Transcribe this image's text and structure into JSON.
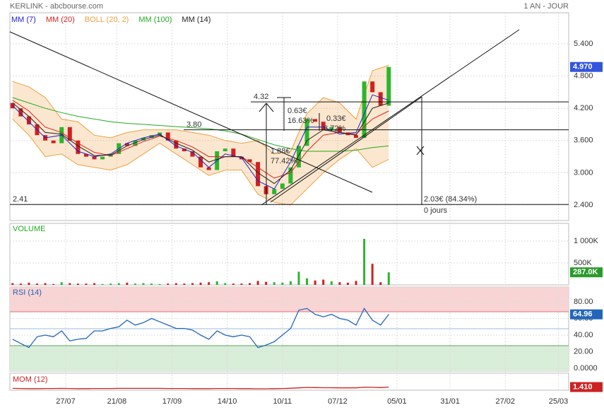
{
  "header": {
    "title": "KERLINK - abcbourse.com",
    "period": "1 AN - JOUR"
  },
  "chart_data": [
    {
      "type": "candlestick",
      "x": [
        0,
        4,
        8,
        12,
        16,
        20,
        24,
        28,
        32,
        36,
        40,
        44,
        48,
        52,
        56,
        60,
        64,
        68,
        72,
        76,
        80,
        84,
        88,
        92,
        96,
        100,
        104,
        108,
        112,
        116,
        120,
        124,
        128,
        132,
        136,
        140,
        144,
        148,
        152,
        156,
        160,
        164,
        168,
        172,
        176,
        180,
        184
      ],
      "open": [
        4.3,
        4.2,
        4.05,
        3.9,
        3.7,
        3.6,
        3.55,
        3.85,
        3.6,
        3.35,
        3.3,
        3.25,
        3.3,
        3.35,
        3.55,
        3.5,
        3.6,
        3.65,
        3.7,
        3.75,
        3.6,
        3.45,
        3.4,
        3.3,
        3.1,
        3.05,
        3.4,
        3.45,
        3.3,
        3.25,
        3.2,
        2.75,
        2.6,
        2.7,
        2.8,
        3.1,
        3.5,
        4.0,
        3.95,
        3.8,
        3.85,
        3.75,
        3.7,
        3.65,
        4.7,
        4.5,
        4.25
      ],
      "close": [
        4.2,
        4.05,
        3.9,
        3.7,
        3.6,
        3.55,
        3.85,
        3.6,
        3.35,
        3.3,
        3.25,
        3.3,
        3.35,
        3.55,
        3.5,
        3.6,
        3.65,
        3.7,
        3.75,
        3.6,
        3.45,
        3.4,
        3.3,
        3.1,
        3.05,
        3.4,
        3.45,
        3.3,
        3.25,
        3.2,
        2.75,
        2.6,
        2.7,
        2.8,
        3.1,
        3.5,
        4.0,
        3.95,
        3.8,
        3.85,
        3.75,
        3.7,
        3.65,
        4.7,
        4.5,
        4.25,
        4.97
      ],
      "xlim": [
        -1.3,
        272
      ],
      "xticks": [
        {
          "value": 26,
          "label": "27/07"
        },
        {
          "value": 51,
          "label": "21/08"
        },
        {
          "value": 78,
          "label": "17/09"
        },
        {
          "value": 105,
          "label": "14/10"
        },
        {
          "value": 132,
          "label": "10/11"
        },
        {
          "value": 159,
          "label": "07/12"
        },
        {
          "value": 188,
          "label": "05/01"
        },
        {
          "value": 214,
          "label": "31/01"
        },
        {
          "value": 241,
          "label": "27/02"
        },
        {
          "value": 267,
          "label": "25/03"
        }
      ],
      "ylim": [
        2.11,
        5.98
      ],
      "yticks": [
        {
          "value": 2.4,
          "label": "2.400"
        },
        {
          "value": 3.0,
          "label": "3.000"
        },
        {
          "value": 3.6,
          "label": "3.600"
        },
        {
          "value": 4.2,
          "label": "4.200"
        },
        {
          "value": 4.8,
          "label": "4.800"
        },
        {
          "value": 5.4,
          "label": "5.400"
        }
      ],
      "last_value": 4.97,
      "last_label": "4.970",
      "series": [
        {
          "name": "MM (7)",
          "color": "#2222cc",
          "x": [
            0,
            8,
            16,
            24,
            32,
            40,
            48,
            56,
            64,
            72,
            80,
            88,
            96,
            104,
            112,
            120,
            128,
            136,
            144,
            152,
            160,
            168,
            176,
            184
          ],
          "values": [
            4.25,
            3.95,
            3.65,
            3.7,
            3.4,
            3.3,
            3.35,
            3.55,
            3.65,
            3.72,
            3.5,
            3.38,
            3.1,
            3.35,
            3.28,
            2.85,
            2.7,
            3.2,
            3.85,
            3.85,
            3.72,
            3.75,
            4.45,
            4.35
          ]
        },
        {
          "name": "MM (20)",
          "color": "#dd2222",
          "x": [
            0,
            8,
            16,
            24,
            32,
            40,
            48,
            56,
            64,
            72,
            80,
            88,
            96,
            104,
            112,
            120,
            128,
            136,
            144,
            152,
            160,
            168,
            176,
            184
          ],
          "values": [
            4.35,
            4.15,
            3.85,
            3.75,
            3.55,
            3.38,
            3.32,
            3.45,
            3.58,
            3.68,
            3.6,
            3.48,
            3.3,
            3.3,
            3.3,
            3.1,
            2.9,
            3.0,
            3.4,
            3.7,
            3.75,
            3.72,
            4.0,
            4.15
          ]
        },
        {
          "name": "BOLL (20, 2)",
          "color": "#f0a040",
          "x": [
            0,
            8,
            16,
            24,
            32,
            40,
            48,
            56,
            64,
            72,
            80,
            88,
            96,
            104,
            112,
            120,
            128,
            136,
            144,
            152,
            160,
            168,
            176,
            184
          ],
          "upper": [
            4.7,
            4.6,
            4.4,
            4.0,
            3.95,
            3.7,
            3.65,
            3.75,
            3.8,
            3.8,
            3.8,
            3.75,
            3.7,
            3.6,
            3.55,
            3.6,
            3.35,
            3.4,
            4.1,
            4.4,
            4.3,
            4.0,
            4.9,
            5.0
          ],
          "lower": [
            4.0,
            3.7,
            3.3,
            3.35,
            3.15,
            3.1,
            3.05,
            3.15,
            3.35,
            3.55,
            3.35,
            3.15,
            2.95,
            3.05,
            3.05,
            2.6,
            2.45,
            2.4,
            2.7,
            3.0,
            3.25,
            3.45,
            3.1,
            3.25
          ]
        },
        {
          "name": "MM (100)",
          "color": "#22aa22",
          "x": [
            0,
            8,
            16,
            24,
            32,
            40,
            48,
            56,
            64,
            72,
            80,
            88,
            96,
            104,
            112,
            120,
            128,
            136,
            144,
            152,
            160,
            168,
            176,
            184
          ],
          "values": [
            4.4,
            4.3,
            4.2,
            4.12,
            4.05,
            4.0,
            3.95,
            3.92,
            3.9,
            3.88,
            3.86,
            3.84,
            3.82,
            3.78,
            3.72,
            3.62,
            3.52,
            3.45,
            3.4,
            3.4,
            3.4,
            3.42,
            3.47,
            3.5
          ]
        },
        {
          "name": "MM (14)",
          "color": "#222222",
          "x": [
            0,
            8,
            16,
            24,
            32,
            40,
            48,
            56,
            64,
            72,
            80,
            88,
            96,
            104,
            112,
            120,
            128,
            136,
            144,
            152,
            160,
            168,
            176,
            184
          ],
          "values": [
            4.3,
            4.05,
            3.75,
            3.72,
            3.5,
            3.32,
            3.33,
            3.5,
            3.62,
            3.7,
            3.55,
            3.42,
            3.2,
            3.3,
            3.3,
            3.0,
            2.8,
            3.05,
            3.6,
            3.8,
            3.75,
            3.7,
            4.2,
            4.3
          ]
        }
      ],
      "levels": [
        {
          "value": 4.32,
          "label": "4.32"
        },
        {
          "value": 3.8,
          "label": "3.80"
        },
        {
          "value": 2.41,
          "label": "2.41"
        }
      ],
      "annotations": [
        "0.63€",
        "16.63%",
        "1.88€",
        "77.42%",
        "2.03€ (84.34%)",
        "0 jours",
        "0.33€",
        "8.72%"
      ]
    },
    {
      "type": "bar",
      "title": "VOLUME",
      "x": [
        0,
        4,
        8,
        12,
        16,
        20,
        24,
        28,
        32,
        36,
        40,
        44,
        48,
        52,
        56,
        60,
        64,
        68,
        72,
        76,
        80,
        84,
        88,
        92,
        96,
        100,
        104,
        108,
        112,
        116,
        120,
        124,
        128,
        132,
        136,
        140,
        144,
        148,
        152,
        156,
        160,
        164,
        168,
        172,
        176,
        180,
        184
      ],
      "values": [
        40000,
        30000,
        50000,
        30000,
        40000,
        20000,
        60000,
        40000,
        30000,
        30000,
        40000,
        20000,
        30000,
        40000,
        50000,
        30000,
        40000,
        30000,
        20000,
        30000,
        40000,
        30000,
        40000,
        50000,
        60000,
        80000,
        40000,
        30000,
        30000,
        40000,
        90000,
        70000,
        60000,
        50000,
        80000,
        300000,
        150000,
        100000,
        120000,
        80000,
        60000,
        50000,
        90000,
        1050000,
        480000,
        60000,
        287000
      ],
      "ylim": [
        0,
        1403000
      ],
      "yticks": [
        {
          "value": 500000,
          "label": "500K"
        },
        {
          "value": 1000000,
          "label": "1 000K"
        }
      ],
      "last_value": 287000,
      "last_label": "287.0K"
    },
    {
      "type": "line",
      "title": "RSI (14)",
      "color": "#2266bb",
      "x": [
        0,
        4,
        8,
        12,
        16,
        20,
        24,
        28,
        32,
        36,
        40,
        44,
        48,
        52,
        56,
        60,
        64,
        68,
        72,
        76,
        80,
        84,
        88,
        92,
        96,
        100,
        104,
        108,
        112,
        116,
        120,
        124,
        128,
        132,
        136,
        140,
        144,
        148,
        152,
        156,
        160,
        164,
        168,
        172,
        176,
        180,
        184
      ],
      "values": [
        35,
        30,
        25,
        38,
        40,
        38,
        45,
        33,
        35,
        36,
        45,
        45,
        48,
        50,
        58,
        52,
        55,
        60,
        56,
        52,
        48,
        48,
        46,
        40,
        35,
        45,
        40,
        38,
        40,
        38,
        25,
        28,
        32,
        40,
        48,
        70,
        72,
        65,
        62,
        65,
        60,
        58,
        52,
        72,
        58,
        52,
        65
      ],
      "ylim": [
        -3.4,
        97.9
      ],
      "yticks": [
        {
          "value": 0,
          "label": "0.0000"
        },
        {
          "value": 20,
          "label": "20.00"
        },
        {
          "value": 40,
          "label": "40.00"
        },
        {
          "value": 60,
          "label": "60.00"
        },
        {
          "value": 80,
          "label": "80.00"
        }
      ],
      "last_value": 64.96,
      "last_label": "64.96"
    },
    {
      "type": "line",
      "title": "MOM (12)",
      "color": "#cc2222",
      "x": [
        0,
        4,
        8,
        12,
        16,
        20,
        24,
        28,
        32,
        36,
        40,
        44,
        48,
        52,
        56,
        60,
        64,
        68,
        72,
        76,
        80,
        84,
        88,
        92,
        96,
        100,
        104,
        108,
        112,
        116,
        120,
        124,
        128,
        132,
        136,
        140,
        144,
        148,
        152,
        156,
        160,
        164,
        168,
        172,
        176,
        180,
        184
      ],
      "values": [
        0.4,
        0.3,
        0.2,
        0.2,
        0.3,
        0.3,
        0.4,
        0.3,
        0.2,
        0.2,
        0.3,
        0.3,
        0.3,
        0.4,
        0.4,
        0.4,
        0.4,
        0.4,
        0.4,
        0.3,
        0.3,
        0.3,
        0.2,
        0.2,
        0.2,
        0.3,
        0.3,
        0.3,
        0.2,
        0.2,
        0.1,
        0.1,
        0.2,
        0.3,
        0.5,
        0.8,
        1.1,
        1.0,
        0.9,
        0.9,
        0.8,
        0.8,
        0.8,
        1.3,
        1.2,
        1.0,
        1.41
      ],
      "ylim": [
        -1,
        12
      ],
      "last_value": 1.41,
      "last_label": "1.410"
    }
  ]
}
